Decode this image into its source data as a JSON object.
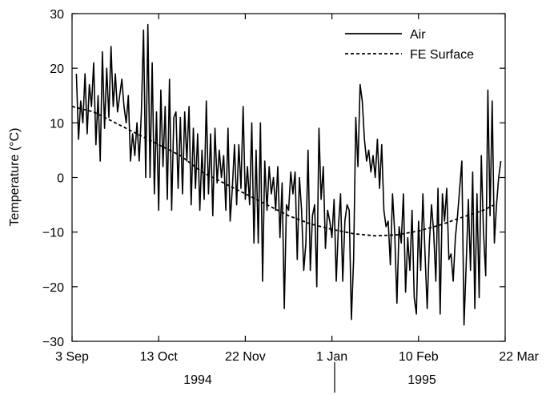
{
  "chart_data": {
    "type": "line",
    "title": "",
    "ylabel": "Temperature (°C)",
    "xlabel": "",
    "ylim": [
      -30,
      30
    ],
    "yticks": [
      -30,
      -20,
      -10,
      0,
      10,
      20,
      30
    ],
    "ytick_labels": [
      "−30",
      "−20",
      "−10",
      "0",
      "10",
      "20",
      "30"
    ],
    "xlim_days": [
      0,
      200
    ],
    "xticks": [
      {
        "day": 0,
        "label": "3 Sep"
      },
      {
        "day": 40,
        "label": "13 Oct"
      },
      {
        "day": 80,
        "label": "22 Nov"
      },
      {
        "day": 120,
        "label": "1 Jan"
      },
      {
        "day": 160,
        "label": "10 Feb"
      },
      {
        "day": 200,
        "label": "22 Mar"
      }
    ],
    "year_labels": [
      "1994",
      "1995"
    ],
    "grid": false,
    "legend_position": "top-right",
    "series": [
      {
        "name": "Air",
        "style": "solid",
        "color": "#000000",
        "x": [
          2,
          3,
          4,
          5,
          6,
          7,
          8,
          9,
          10,
          11,
          12,
          13,
          14,
          15,
          16,
          17,
          18,
          19,
          20,
          21,
          22,
          23,
          24,
          25,
          26,
          27,
          28,
          29,
          30,
          31,
          32,
          33,
          34,
          35,
          36,
          37,
          38,
          39,
          40,
          41,
          42,
          43,
          44,
          45,
          46,
          47,
          48,
          49,
          50,
          51,
          52,
          53,
          54,
          55,
          56,
          57,
          58,
          59,
          60,
          61,
          62,
          63,
          64,
          65,
          66,
          67,
          68,
          69,
          70,
          71,
          72,
          73,
          74,
          75,
          76,
          77,
          78,
          79,
          80,
          81,
          82,
          83,
          84,
          85,
          86,
          87,
          88,
          89,
          90,
          91,
          92,
          93,
          94,
          95,
          96,
          97,
          98,
          99,
          100,
          101,
          102,
          103,
          104,
          105,
          106,
          107,
          108,
          109,
          110,
          111,
          112,
          113,
          114,
          115,
          116,
          117,
          118,
          119,
          120,
          121,
          122,
          123,
          124,
          125,
          126,
          127,
          128,
          129,
          130,
          131,
          132,
          133,
          134,
          135,
          136,
          137,
          138,
          139,
          140,
          141,
          142,
          143,
          144,
          145,
          146,
          147,
          148,
          149,
          150,
          151,
          152,
          153,
          154,
          155,
          156,
          157,
          158,
          159,
          160,
          161,
          162,
          163,
          164,
          165,
          166,
          167,
          168,
          169,
          170,
          171,
          172,
          173,
          174,
          175,
          176,
          177,
          178,
          179,
          180,
          181,
          182,
          183,
          184,
          185,
          186,
          187,
          188,
          189,
          190,
          191,
          192,
          193,
          194,
          195,
          196,
          197,
          198
        ],
        "y": [
          19,
          7,
          14,
          10,
          19,
          8,
          17,
          13,
          21,
          6,
          15,
          3,
          23,
          9,
          20,
          11,
          24,
          13,
          19,
          12,
          15,
          18,
          13,
          10,
          15,
          3,
          8,
          4,
          10,
          3,
          12,
          27,
          0,
          28,
          0,
          21,
          -3,
          12,
          -6,
          16,
          2,
          13,
          -4,
          18,
          -6,
          11,
          12,
          -2,
          11,
          -3,
          12,
          3,
          13,
          -5,
          9,
          -2,
          8,
          -6,
          5,
          -4,
          14,
          -3,
          8,
          -7,
          9,
          -1,
          5,
          0,
          4,
          -6,
          9,
          -8,
          -2,
          6,
          -5,
          6,
          -2,
          13,
          -4,
          2,
          -5,
          10,
          -12,
          5,
          -12,
          10,
          -19,
          3,
          -6,
          2,
          -3,
          0,
          -6,
          2,
          -11,
          -1,
          -24,
          -5,
          -6,
          1,
          -3,
          1,
          -15,
          0,
          -6,
          -17,
          -12,
          5,
          -17,
          -7,
          -5,
          -20,
          9,
          -4,
          2,
          -13,
          -6,
          -8,
          -11,
          -4,
          -19,
          -9,
          -3,
          -19,
          -8,
          -5,
          -6,
          -26,
          -15,
          11,
          2,
          17,
          14,
          7,
          3,
          5,
          1,
          4,
          0,
          7,
          -2,
          6,
          -6,
          -9,
          -8,
          -16,
          -3,
          -10,
          -23,
          -9,
          -12,
          -3,
          -21,
          -11,
          -17,
          -6,
          -22,
          -25,
          -8,
          -17,
          -3,
          -14,
          -24,
          -12,
          -5,
          -10,
          -19,
          -2,
          -25,
          -3,
          -8,
          -2,
          -15,
          -14,
          -19,
          -11,
          -7,
          -2,
          3,
          -27,
          -16,
          -4,
          -17,
          1,
          -24,
          -3,
          -22,
          4,
          -10,
          -18,
          16,
          -7,
          14,
          -12,
          -5,
          0,
          3
        ]
      },
      {
        "name": "FE Surface",
        "style": "dashed",
        "color": "#000000",
        "x": [
          0,
          10,
          20,
          30,
          40,
          50,
          60,
          70,
          80,
          90,
          100,
          110,
          120,
          130,
          140,
          150,
          160,
          170,
          180,
          190,
          195
        ],
        "y": [
          13,
          12,
          10,
          8,
          6,
          4,
          1,
          -1,
          -3,
          -5,
          -7,
          -8.5,
          -9.5,
          -10.3,
          -10.7,
          -10.5,
          -9.8,
          -8.7,
          -7.3,
          -6,
          -5
        ]
      }
    ]
  }
}
